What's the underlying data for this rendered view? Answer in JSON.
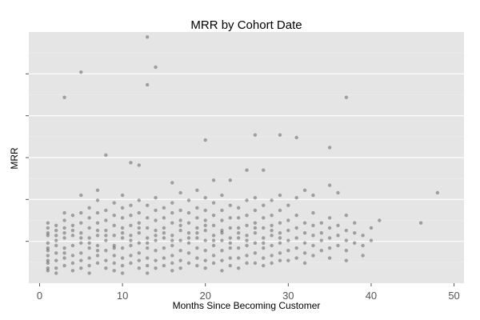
{
  "chart_data": {
    "type": "scatter",
    "title": "MRR by Cohort Date",
    "xlabel": "Months Since Becoming Customer",
    "ylabel": "MRR",
    "xlim": [
      -1.3,
      51.2
    ],
    "x_ticks": [
      0,
      10,
      20,
      30,
      40,
      50
    ],
    "ylim": [
      0,
      100
    ],
    "y_tick_count": 5,
    "y_tick_labels_shown": false,
    "grid": true,
    "legend": "none",
    "point_color": "#2b2b2b",
    "panel_background": "#e5e5e5",
    "grid_color": "#ffffff",
    "outliers": [
      [
        13,
        98
      ],
      [
        5,
        84
      ],
      [
        14,
        86
      ],
      [
        13,
        79
      ],
      [
        3,
        74
      ],
      [
        37,
        74
      ],
      [
        20,
        57
      ],
      [
        26,
        59
      ],
      [
        29,
        59
      ],
      [
        35,
        54
      ],
      [
        8,
        51
      ],
      [
        11,
        48
      ],
      [
        12,
        47
      ],
      [
        25,
        45
      ],
      [
        27,
        45
      ],
      [
        21,
        41
      ],
      [
        16,
        40
      ],
      [
        23,
        41
      ],
      [
        31,
        58
      ],
      [
        48,
        36
      ],
      [
        46,
        24
      ],
      [
        41,
        25
      ],
      [
        7,
        37
      ],
      [
        36,
        36
      ],
      [
        33,
        35
      ],
      [
        32,
        37
      ],
      [
        35,
        39
      ]
    ],
    "dense_points": [
      [
        1,
        22
      ],
      [
        1,
        19
      ],
      [
        1,
        16
      ],
      [
        1,
        13
      ],
      [
        1,
        11
      ],
      [
        1,
        8
      ],
      [
        1,
        5
      ],
      [
        1,
        24
      ],
      [
        1,
        20
      ],
      [
        1,
        14
      ],
      [
        1,
        9
      ],
      [
        1,
        6
      ],
      [
        2,
        23
      ],
      [
        2,
        19
      ],
      [
        2,
        15
      ],
      [
        2,
        12
      ],
      [
        2,
        9
      ],
      [
        2,
        6
      ],
      [
        2,
        4
      ],
      [
        2,
        21
      ],
      [
        2,
        17
      ],
      [
        3,
        28
      ],
      [
        3,
        25
      ],
      [
        3,
        22
      ],
      [
        3,
        18
      ],
      [
        3,
        14
      ],
      [
        3,
        10
      ],
      [
        3,
        7
      ],
      [
        3,
        20
      ],
      [
        3,
        12
      ],
      [
        4,
        27
      ],
      [
        4,
        23
      ],
      [
        4,
        19
      ],
      [
        4,
        15
      ],
      [
        4,
        11
      ],
      [
        4,
        8
      ],
      [
        4,
        5
      ],
      [
        4,
        21
      ],
      [
        5,
        35
      ],
      [
        5,
        28
      ],
      [
        5,
        24
      ],
      [
        5,
        20
      ],
      [
        5,
        16
      ],
      [
        5,
        12
      ],
      [
        5,
        9
      ],
      [
        5,
        6
      ],
      [
        5,
        18
      ],
      [
        6,
        30
      ],
      [
        6,
        26
      ],
      [
        6,
        22
      ],
      [
        6,
        18
      ],
      [
        6,
        14
      ],
      [
        6,
        10
      ],
      [
        6,
        7
      ],
      [
        6,
        4
      ],
      [
        6,
        16
      ],
      [
        7,
        33
      ],
      [
        7,
        28
      ],
      [
        7,
        24
      ],
      [
        7,
        19
      ],
      [
        7,
        15
      ],
      [
        7,
        11
      ],
      [
        7,
        8
      ],
      [
        7,
        21
      ],
      [
        7,
        13
      ],
      [
        8,
        29
      ],
      [
        8,
        25
      ],
      [
        8,
        21
      ],
      [
        8,
        17
      ],
      [
        8,
        13
      ],
      [
        8,
        9
      ],
      [
        8,
        6
      ],
      [
        8,
        19
      ],
      [
        9,
        32
      ],
      [
        9,
        27
      ],
      [
        9,
        23
      ],
      [
        9,
        19
      ],
      [
        9,
        15
      ],
      [
        9,
        11
      ],
      [
        9,
        8
      ],
      [
        9,
        5
      ],
      [
        9,
        14
      ],
      [
        10,
        35
      ],
      [
        10,
        30
      ],
      [
        10,
        26
      ],
      [
        10,
        22
      ],
      [
        10,
        18
      ],
      [
        10,
        14
      ],
      [
        10,
        10
      ],
      [
        10,
        7
      ],
      [
        10,
        4
      ],
      [
        10,
        20
      ],
      [
        11,
        31
      ],
      [
        11,
        27
      ],
      [
        11,
        23
      ],
      [
        11,
        19
      ],
      [
        11,
        15
      ],
      [
        11,
        11
      ],
      [
        11,
        8
      ],
      [
        11,
        17
      ],
      [
        12,
        33
      ],
      [
        12,
        28
      ],
      [
        12,
        24
      ],
      [
        12,
        20
      ],
      [
        12,
        16
      ],
      [
        12,
        12
      ],
      [
        12,
        9
      ],
      [
        12,
        6
      ],
      [
        12,
        22
      ],
      [
        13,
        31
      ],
      [
        13,
        26
      ],
      [
        13,
        22
      ],
      [
        13,
        18
      ],
      [
        13,
        14
      ],
      [
        13,
        10
      ],
      [
        13,
        7
      ],
      [
        13,
        4
      ],
      [
        13,
        16
      ],
      [
        14,
        34
      ],
      [
        14,
        29
      ],
      [
        14,
        25
      ],
      [
        14,
        21
      ],
      [
        14,
        17
      ],
      [
        14,
        13
      ],
      [
        14,
        9
      ],
      [
        14,
        6
      ],
      [
        14,
        19
      ],
      [
        15,
        30
      ],
      [
        15,
        26
      ],
      [
        15,
        22
      ],
      [
        15,
        18
      ],
      [
        15,
        14
      ],
      [
        15,
        10
      ],
      [
        15,
        7
      ],
      [
        15,
        20
      ],
      [
        16,
        32
      ],
      [
        16,
        28
      ],
      [
        16,
        24
      ],
      [
        16,
        19
      ],
      [
        16,
        15
      ],
      [
        16,
        11
      ],
      [
        16,
        8
      ],
      [
        16,
        5
      ],
      [
        16,
        17
      ],
      [
        17,
        36
      ],
      [
        17,
        29
      ],
      [
        17,
        25
      ],
      [
        17,
        21
      ],
      [
        17,
        17
      ],
      [
        17,
        13
      ],
      [
        17,
        9
      ],
      [
        17,
        6
      ],
      [
        17,
        23
      ],
      [
        18,
        33
      ],
      [
        18,
        28
      ],
      [
        18,
        24
      ],
      [
        18,
        20
      ],
      [
        18,
        16
      ],
      [
        18,
        12
      ],
      [
        18,
        8
      ],
      [
        18,
        18
      ],
      [
        19,
        37
      ],
      [
        19,
        30
      ],
      [
        19,
        26
      ],
      [
        19,
        22
      ],
      [
        19,
        18
      ],
      [
        19,
        14
      ],
      [
        19,
        10
      ],
      [
        19,
        7
      ],
      [
        19,
        20
      ],
      [
        20,
        34
      ],
      [
        20,
        29
      ],
      [
        20,
        25
      ],
      [
        20,
        21
      ],
      [
        20,
        17
      ],
      [
        20,
        13
      ],
      [
        20,
        9
      ],
      [
        20,
        6
      ],
      [
        20,
        23
      ],
      [
        21,
        32
      ],
      [
        21,
        27
      ],
      [
        21,
        23
      ],
      [
        21,
        19
      ],
      [
        21,
        15
      ],
      [
        21,
        11
      ],
      [
        21,
        8
      ],
      [
        21,
        17
      ],
      [
        22,
        35
      ],
      [
        22,
        29
      ],
      [
        22,
        25
      ],
      [
        22,
        21
      ],
      [
        22,
        17
      ],
      [
        22,
        13
      ],
      [
        22,
        9
      ],
      [
        22,
        5
      ],
      [
        22,
        20
      ],
      [
        23,
        31
      ],
      [
        23,
        26
      ],
      [
        23,
        22
      ],
      [
        23,
        18
      ],
      [
        23,
        14
      ],
      [
        23,
        10
      ],
      [
        23,
        7
      ],
      [
        23,
        16
      ],
      [
        24,
        30
      ],
      [
        24,
        26
      ],
      [
        24,
        22
      ],
      [
        24,
        18
      ],
      [
        24,
        14
      ],
      [
        24,
        10
      ],
      [
        24,
        6
      ],
      [
        24,
        20
      ],
      [
        25,
        33
      ],
      [
        25,
        27
      ],
      [
        25,
        23
      ],
      [
        25,
        19
      ],
      [
        25,
        15
      ],
      [
        25,
        11
      ],
      [
        25,
        8
      ],
      [
        25,
        17
      ],
      [
        26,
        34
      ],
      [
        26,
        29
      ],
      [
        26,
        24
      ],
      [
        26,
        20
      ],
      [
        26,
        16
      ],
      [
        26,
        12
      ],
      [
        26,
        8
      ],
      [
        26,
        22
      ],
      [
        27,
        31
      ],
      [
        27,
        26
      ],
      [
        27,
        22
      ],
      [
        27,
        18
      ],
      [
        27,
        14
      ],
      [
        27,
        10
      ],
      [
        27,
        7
      ],
      [
        27,
        16
      ],
      [
        28,
        33
      ],
      [
        28,
        27
      ],
      [
        28,
        23
      ],
      [
        28,
        19
      ],
      [
        28,
        15
      ],
      [
        28,
        11
      ],
      [
        28,
        8
      ],
      [
        28,
        21
      ],
      [
        29,
        35
      ],
      [
        29,
        29
      ],
      [
        29,
        24
      ],
      [
        29,
        20
      ],
      [
        29,
        16
      ],
      [
        29,
        12
      ],
      [
        29,
        9
      ],
      [
        29,
        18
      ],
      [
        30,
        31
      ],
      [
        30,
        25
      ],
      [
        30,
        21
      ],
      [
        30,
        17
      ],
      [
        30,
        13
      ],
      [
        30,
        9
      ],
      [
        31,
        34
      ],
      [
        31,
        27
      ],
      [
        31,
        22
      ],
      [
        31,
        18
      ],
      [
        31,
        14
      ],
      [
        31,
        10
      ],
      [
        32,
        24
      ],
      [
        32,
        20
      ],
      [
        32,
        16
      ],
      [
        32,
        12
      ],
      [
        32,
        8
      ],
      [
        33,
        28
      ],
      [
        33,
        23
      ],
      [
        33,
        19
      ],
      [
        33,
        15
      ],
      [
        33,
        11
      ],
      [
        34,
        24
      ],
      [
        34,
        20
      ],
      [
        34,
        17
      ],
      [
        34,
        13
      ],
      [
        35,
        26
      ],
      [
        35,
        22
      ],
      [
        35,
        18
      ],
      [
        35,
        14
      ],
      [
        35,
        10
      ],
      [
        36,
        23
      ],
      [
        36,
        19
      ],
      [
        36,
        15
      ],
      [
        37,
        27
      ],
      [
        37,
        21
      ],
      [
        37,
        17
      ],
      [
        37,
        13
      ],
      [
        37,
        9
      ],
      [
        38,
        24
      ],
      [
        38,
        20
      ],
      [
        38,
        16
      ],
      [
        39,
        19
      ],
      [
        39,
        15
      ],
      [
        39,
        11
      ],
      [
        40,
        22
      ],
      [
        40,
        17
      ]
    ]
  }
}
